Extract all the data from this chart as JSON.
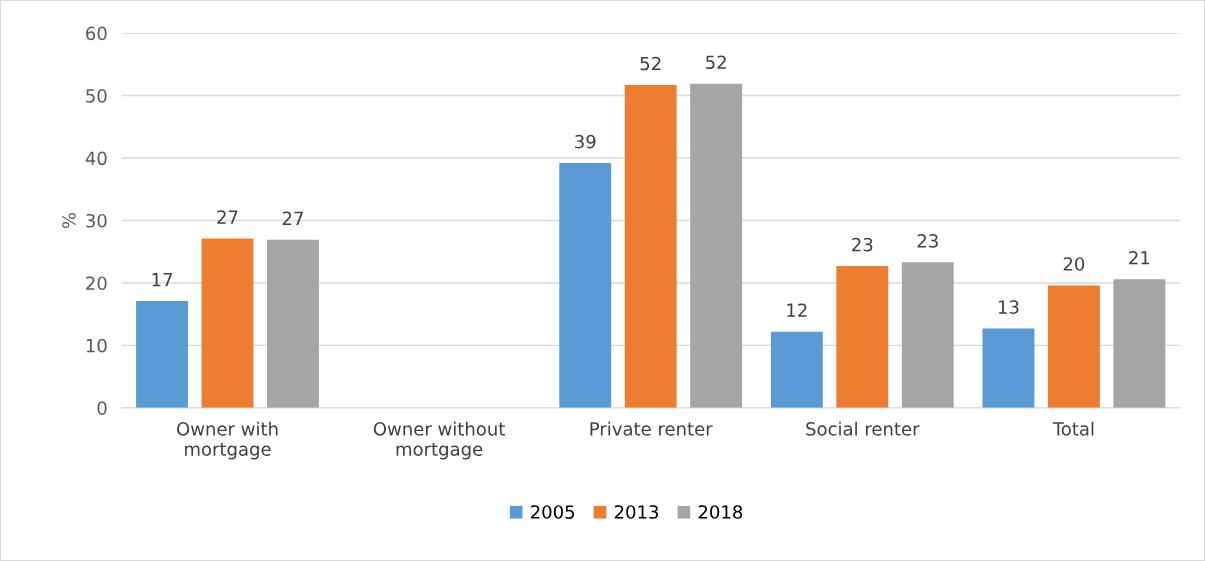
{
  "chart_data": {
    "type": "bar",
    "ylabel": "%",
    "categories": [
      "Owner with\nmortgage",
      "Owner without\nmortgage",
      "Private renter",
      "Social renter",
      "Total"
    ],
    "series": [
      {
        "name": "2005",
        "color": "#5b9bd5",
        "values": [
          17.1,
          null,
          39.2,
          12.2,
          12.7
        ],
        "value_labels": [
          "17",
          null,
          "39",
          "12",
          "13"
        ]
      },
      {
        "name": "2013",
        "color": "#ed7d31",
        "values": [
          27.1,
          null,
          51.7,
          22.7,
          19.6
        ],
        "value_labels": [
          "27",
          null,
          "52",
          "23",
          "20"
        ]
      },
      {
        "name": "2018",
        "color": "#a5a5a5",
        "values": [
          26.9,
          null,
          51.9,
          23.3,
          20.6
        ],
        "value_labels": [
          "27",
          null,
          "52",
          "23",
          "21"
        ]
      }
    ],
    "ylim": [
      0,
      60
    ],
    "yticks": [
      0,
      10,
      20,
      30,
      40,
      50,
      60
    ],
    "grid": "y",
    "legend": "bottom"
  }
}
